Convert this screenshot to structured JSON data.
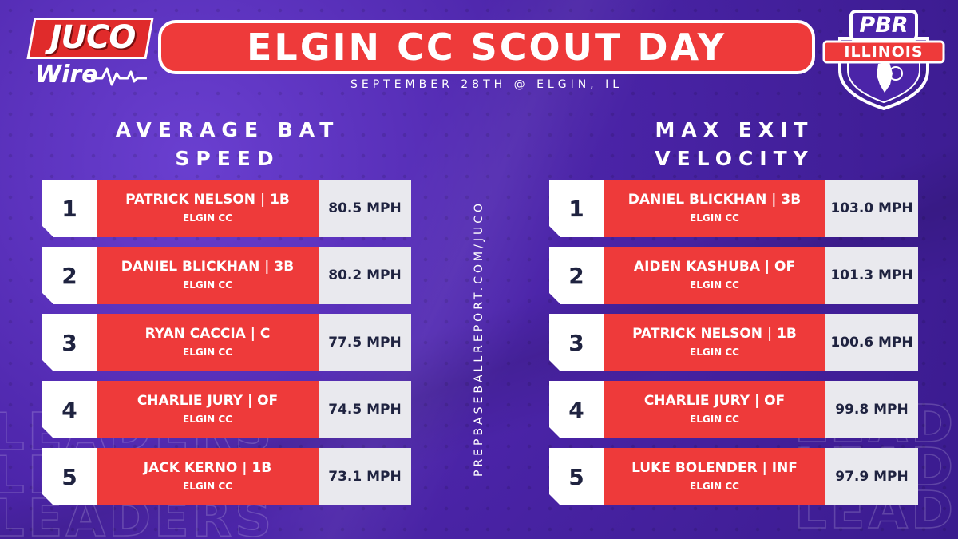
{
  "header": {
    "title": "ELGIN CC SCOUT DAY",
    "subtitle": "SEPTEMBER 28TH @ ELGIN, IL",
    "left_logo": {
      "line1": "JUCO",
      "line2": "Wire"
    },
    "right_logo": {
      "line1": "PBR",
      "line2": "ILLINOIS"
    }
  },
  "side_url": "PREPBASEBALLREPORT.COM/JUCO",
  "watermark_word": "LEADERS",
  "colors": {
    "background": "#4b24a8",
    "accent_red": "#ee3a3a",
    "rank_bg": "#ffffff",
    "metric_bg": "#e9e9ee",
    "dark_text": "#1f2340"
  },
  "boards": [
    {
      "title_line1": "AVERAGE BAT",
      "title_line2": "SPEED",
      "rows": [
        {
          "rank": "1",
          "name": "PATRICK NELSON | 1B",
          "school": "ELGIN CC",
          "value": "80.5 MPH"
        },
        {
          "rank": "2",
          "name": "DANIEL BLICKHAN | 3B",
          "school": "ELGIN CC",
          "value": "80.2 MPH"
        },
        {
          "rank": "3",
          "name": "RYAN CACCIA | C",
          "school": "ELGIN CC",
          "value": "77.5 MPH"
        },
        {
          "rank": "4",
          "name": "CHARLIE JURY | OF",
          "school": "ELGIN CC",
          "value": "74.5 MPH"
        },
        {
          "rank": "5",
          "name": "JACK KERNO | 1B",
          "school": "ELGIN CC",
          "value": "73.1 MPH"
        }
      ]
    },
    {
      "title_line1": "MAX EXIT",
      "title_line2": "VELOCITY",
      "rows": [
        {
          "rank": "1",
          "name": "DANIEL BLICKHAN | 3B",
          "school": "ELGIN CC",
          "value": "103.0 MPH"
        },
        {
          "rank": "2",
          "name": "AIDEN KASHUBA | OF",
          "school": "ELGIN CC",
          "value": "101.3 MPH"
        },
        {
          "rank": "3",
          "name": "PATRICK NELSON | 1B",
          "school": "ELGIN CC",
          "value": "100.6 MPH"
        },
        {
          "rank": "4",
          "name": "CHARLIE JURY | OF",
          "school": "ELGIN CC",
          "value": "99.8 MPH"
        },
        {
          "rank": "5",
          "name": "LUKE BOLENDER | INF",
          "school": "ELGIN CC",
          "value": "97.9 MPH"
        }
      ]
    }
  ]
}
